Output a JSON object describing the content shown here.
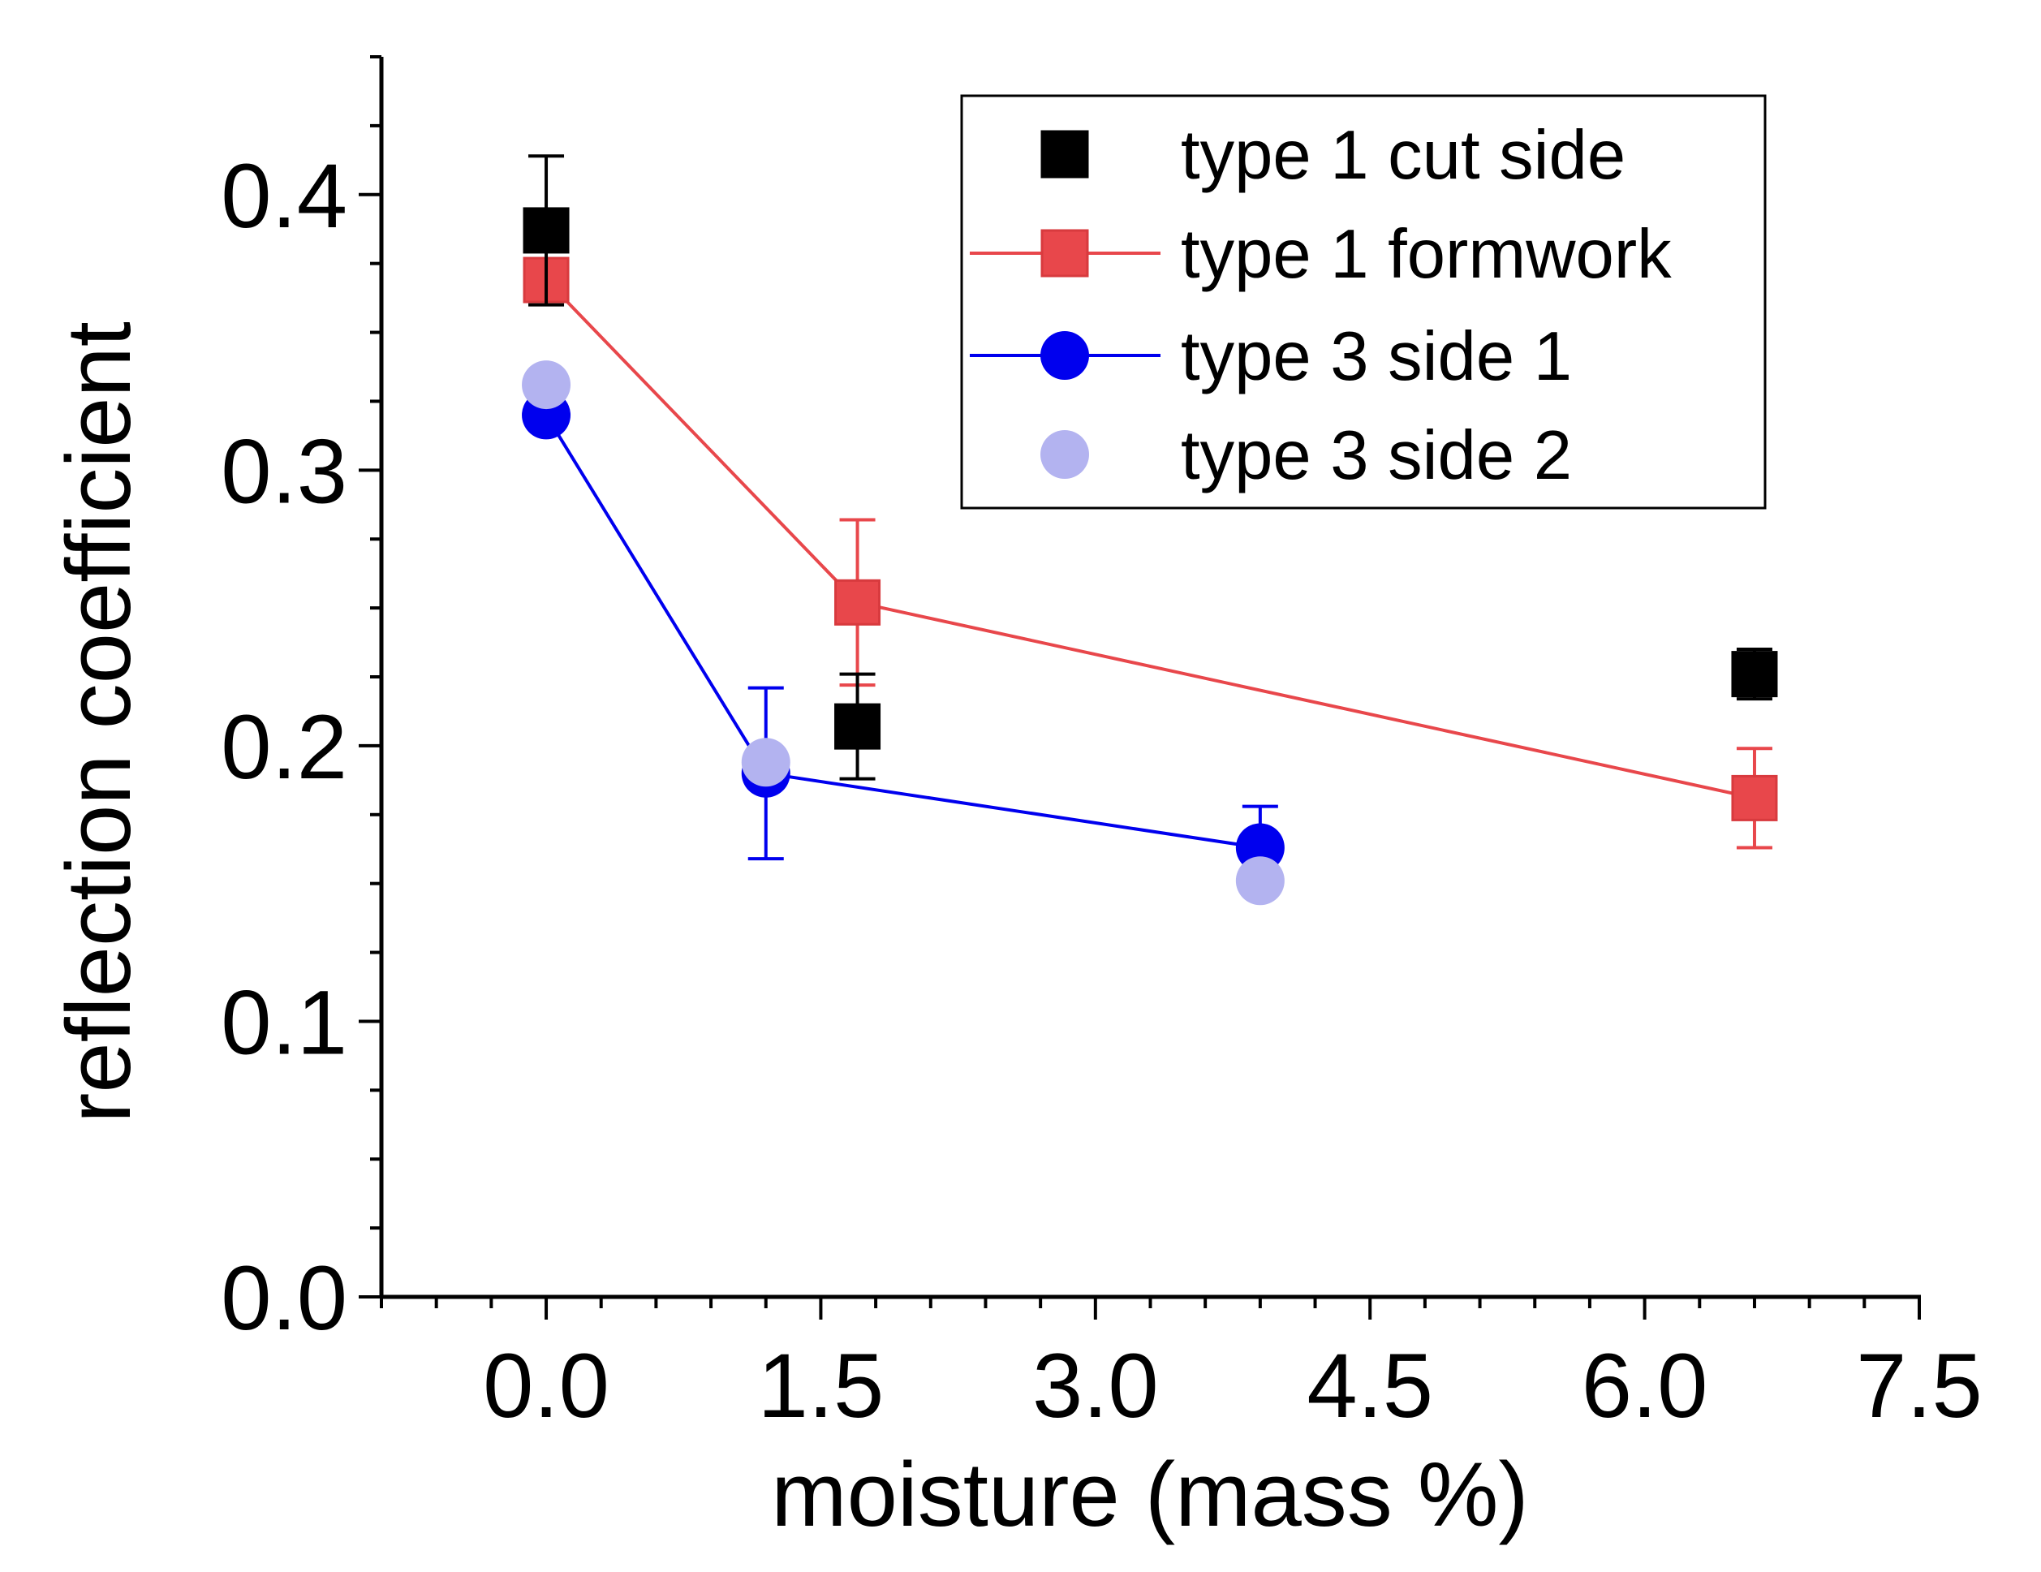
{
  "chart_data": {
    "type": "scatter",
    "title": "",
    "xlabel": "moisture (mass %)",
    "ylabel": "reflection coefficient",
    "xlim": [
      -0.9,
      7.5
    ],
    "ylim": [
      0.0,
      0.45
    ],
    "xticks": [
      0.0,
      1.5,
      3.0,
      4.5,
      6.0,
      7.5
    ],
    "xtick_labels": [
      "0.0",
      "1.5",
      "3.0",
      "4.5",
      "6.0",
      "7.5"
    ],
    "yticks": [
      0.0,
      0.1,
      0.2,
      0.3,
      0.4
    ],
    "ytick_labels": [
      "0.0",
      "0.1",
      "0.2",
      "0.3",
      "0.4"
    ],
    "grid": false,
    "legend_position": "top-right",
    "series": [
      {
        "name": "type 1 cut side",
        "marker": "square",
        "line": false,
        "color": "#000000",
        "x": [
          0.0,
          1.7,
          6.6
        ],
        "y": [
          0.387,
          0.207,
          0.226
        ],
        "err": [
          0.027,
          0.019,
          0.009
        ]
      },
      {
        "name": "type 1 formwork",
        "marker": "square",
        "line": true,
        "color": "#e8474b",
        "x": [
          0.0,
          1.7,
          6.6
        ],
        "y": [
          0.369,
          0.252,
          0.181
        ],
        "err": [
          0.0,
          0.03,
          0.018
        ]
      },
      {
        "name": "type 3 side 1",
        "marker": "circle",
        "line": true,
        "color": "#0000ee",
        "x": [
          0.0,
          1.2,
          3.9
        ],
        "y": [
          0.32,
          0.19,
          0.163
        ],
        "err": [
          0.0,
          0.031,
          0.015
        ]
      },
      {
        "name": "type 3 side 2",
        "marker": "circle",
        "line": false,
        "color": "#b3b3f0",
        "x": [
          0.0,
          1.2,
          3.9
        ],
        "y": [
          0.331,
          0.194,
          0.151
        ],
        "err": [
          0.0,
          0.0,
          0.0
        ]
      }
    ]
  }
}
